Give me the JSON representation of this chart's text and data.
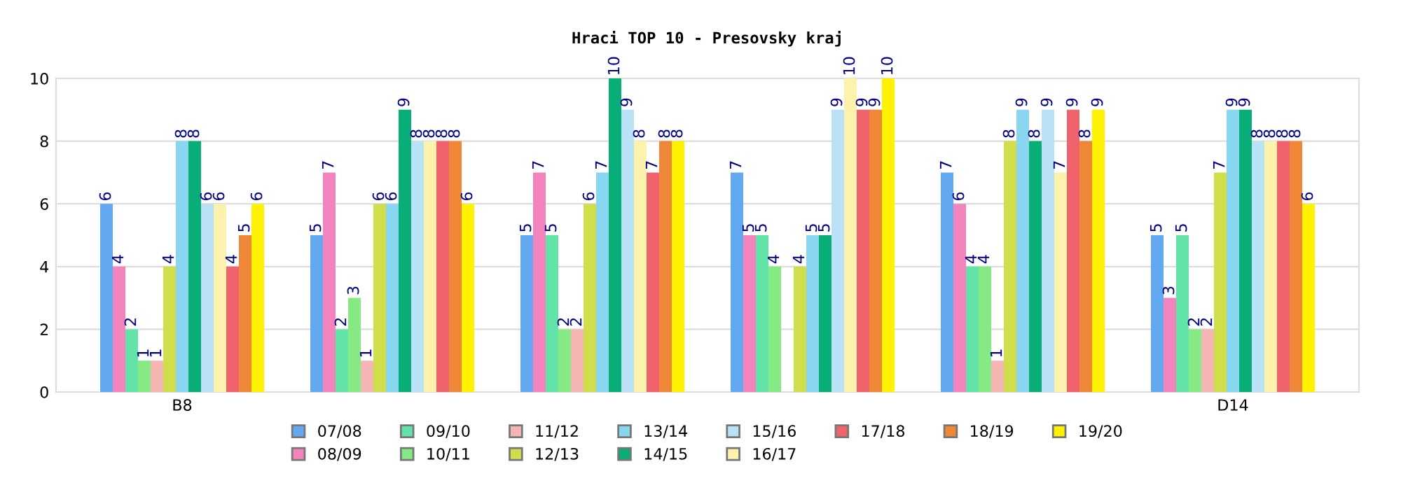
{
  "chart_data": {
    "type": "bar",
    "title": "Hraci TOP 10 - Presovsky kraj",
    "categories": [
      "B8",
      null,
      null,
      null,
      null,
      "D14"
    ],
    "ylim": [
      0,
      10
    ],
    "yticks": [
      0,
      2,
      4,
      6,
      8,
      10
    ],
    "grid": "y",
    "legend": "bottom",
    "data_labels": true,
    "series": [
      {
        "name": "07/08",
        "color": "#63a9f2",
        "values": [
          6,
          5,
          5,
          7,
          7,
          5
        ]
      },
      {
        "name": "08/09",
        "color": "#f283bd",
        "values": [
          4,
          7,
          7,
          5,
          6,
          3
        ]
      },
      {
        "name": "09/10",
        "color": "#62e3a8",
        "values": [
          2,
          2,
          5,
          5,
          4,
          5
        ]
      },
      {
        "name": "10/11",
        "color": "#85ea83",
        "values": [
          1,
          3,
          2,
          4,
          4,
          2
        ]
      },
      {
        "name": "11/12",
        "color": "#f5b5b5",
        "values": [
          1,
          1,
          2,
          null,
          1,
          2
        ]
      },
      {
        "name": "12/13",
        "color": "#d1de4c",
        "values": [
          4,
          6,
          6,
          4,
          8,
          7
        ]
      },
      {
        "name": "13/14",
        "color": "#88d6f0",
        "values": [
          8,
          6,
          7,
          5,
          9,
          9
        ]
      },
      {
        "name": "14/15",
        "color": "#08ad78",
        "values": [
          8,
          9,
          10,
          5,
          8,
          9
        ]
      },
      {
        "name": "15/16",
        "color": "#b9e2f7",
        "values": [
          6,
          8,
          9,
          9,
          9,
          8
        ]
      },
      {
        "name": "16/17",
        "color": "#fdf2ab",
        "values": [
          6,
          8,
          8,
          10,
          7,
          8
        ]
      },
      {
        "name": "17/18",
        "color": "#f0636d",
        "values": [
          4,
          8,
          7,
          9,
          9,
          8
        ]
      },
      {
        "name": "18/19",
        "color": "#ee8736",
        "values": [
          5,
          8,
          8,
          9,
          8,
          8
        ]
      },
      {
        "name": "19/20",
        "color": "#fff200",
        "values": [
          6,
          6,
          8,
          10,
          9,
          6
        ]
      }
    ]
  }
}
